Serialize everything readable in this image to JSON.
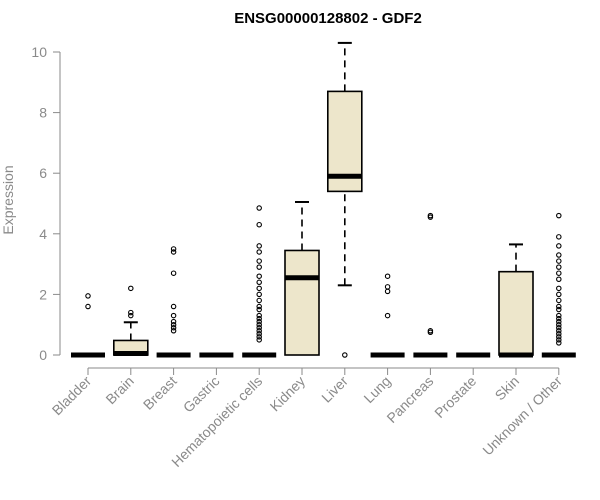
{
  "chart_data": {
    "type": "boxplot",
    "title": "ENSG00000128802 - GDF2",
    "xlabel": "",
    "ylabel": "Expression",
    "ylim": [
      0,
      10.5
    ],
    "yticks": [
      0,
      2,
      4,
      6,
      8,
      10
    ],
    "box_color": "#ede6cb",
    "categories": [
      "Bladder",
      "Brain",
      "Breast",
      "Gastric",
      "Hematopoietic cells",
      "Kidney",
      "Liver",
      "Lung",
      "Pancreas",
      "Prostate",
      "Skin",
      "Unknown / Other"
    ],
    "boxes": [
      {
        "q1": 0,
        "median": 0,
        "q3": 0,
        "whisker_low": 0,
        "whisker_high": 0,
        "outliers": [
          1.6,
          1.95
        ]
      },
      {
        "q1": 0,
        "median": 0.05,
        "q3": 0.48,
        "whisker_low": 0,
        "whisker_high": 1.08,
        "outliers": [
          1.3,
          1.4,
          2.2
        ]
      },
      {
        "q1": 0,
        "median": 0,
        "q3": 0,
        "whisker_low": 0,
        "whisker_high": 0,
        "outliers": [
          0.8,
          0.9,
          1.0,
          1.1,
          1.3,
          1.6,
          2.7,
          3.4,
          3.5
        ]
      },
      {
        "q1": 0,
        "median": 0,
        "q3": 0,
        "whisker_low": 0,
        "whisker_high": 0,
        "outliers": []
      },
      {
        "q1": 0,
        "median": 0,
        "q3": 0,
        "whisker_low": 0,
        "whisker_high": 0,
        "outliers": [
          0.5,
          0.6,
          0.7,
          0.8,
          0.9,
          1.0,
          1.1,
          1.2,
          1.3,
          1.5,
          1.6,
          1.8,
          2.0,
          2.2,
          2.4,
          2.6,
          2.9,
          3.1,
          3.4,
          3.6,
          4.3,
          4.85
        ]
      },
      {
        "q1": 0,
        "median": 2.55,
        "q3": 3.45,
        "whisker_low": 0,
        "whisker_high": 5.05,
        "outliers": []
      },
      {
        "q1": 5.4,
        "median": 5.9,
        "q3": 8.7,
        "whisker_low": 2.3,
        "whisker_high": 10.3,
        "outliers": [
          0
        ]
      },
      {
        "q1": 0,
        "median": 0,
        "q3": 0,
        "whisker_low": 0,
        "whisker_high": 0,
        "outliers": [
          1.3,
          2.1,
          2.25,
          2.6
        ]
      },
      {
        "q1": 0,
        "median": 0,
        "q3": 0,
        "whisker_low": 0,
        "whisker_high": 0,
        "outliers": [
          0.75,
          0.8,
          4.55,
          4.6
        ]
      },
      {
        "q1": 0,
        "median": 0,
        "q3": 0,
        "whisker_low": 0,
        "whisker_high": 0,
        "outliers": []
      },
      {
        "q1": 0,
        "median": 0,
        "q3": 2.75,
        "whisker_low": 0,
        "whisker_high": 3.65,
        "outliers": []
      },
      {
        "q1": 0,
        "median": 0,
        "q3": 0,
        "whisker_low": 0,
        "whisker_high": 0,
        "outliers": [
          0.4,
          0.5,
          0.6,
          0.7,
          0.8,
          0.9,
          1.0,
          1.1,
          1.2,
          1.3,
          1.5,
          1.6,
          1.8,
          2.0,
          2.2,
          2.5,
          2.7,
          2.9,
          3.1,
          3.3,
          3.6,
          3.9,
          4.6
        ]
      }
    ]
  }
}
